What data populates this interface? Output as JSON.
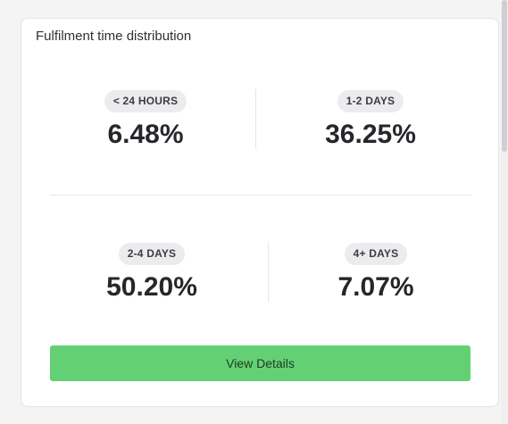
{
  "card": {
    "title": "Fulfilment time distribution",
    "button_label": "View Details"
  },
  "stats": [
    {
      "label": "< 24 HOURS",
      "value": "6.48%"
    },
    {
      "label": "1-2 DAYS",
      "value": "36.25%"
    },
    {
      "label": "2-4 DAYS",
      "value": "50.20%"
    },
    {
      "label": "4+ DAYS",
      "value": "7.07%"
    }
  ],
  "colors": {
    "button": "#63d173",
    "pill": "#ececee",
    "background": "#f4f4f5"
  }
}
